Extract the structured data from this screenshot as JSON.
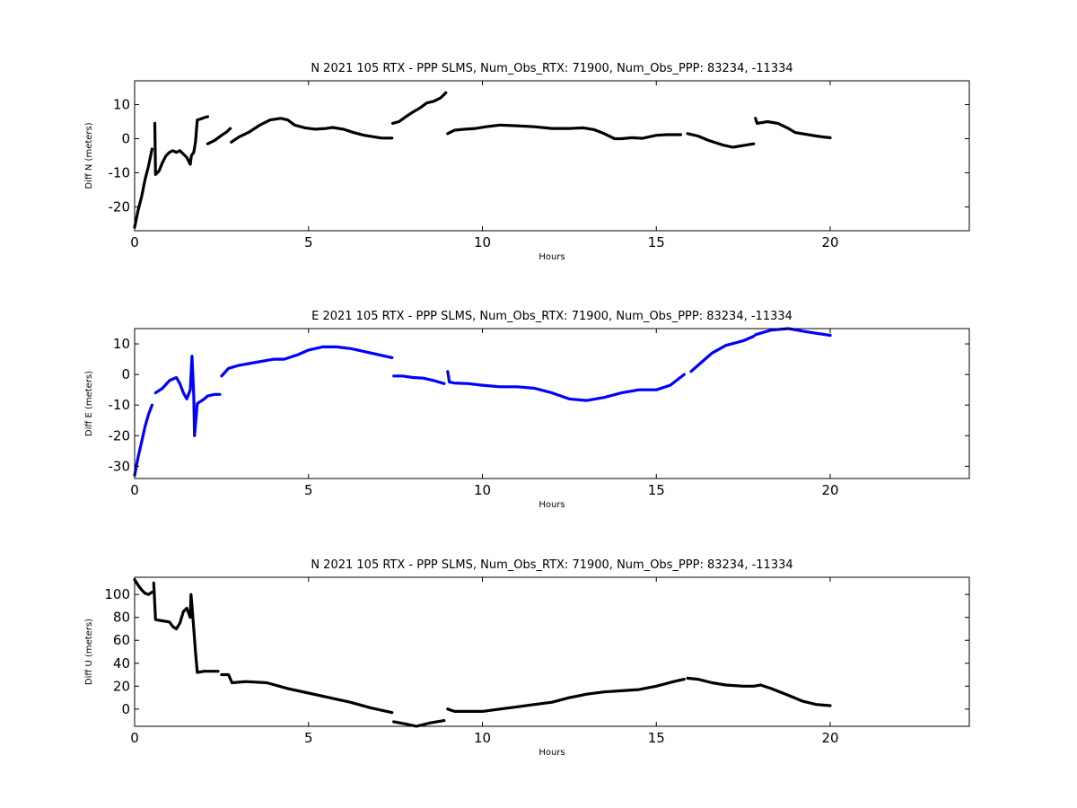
{
  "chart_data": [
    {
      "type": "scatter",
      "title": "N 2021 105 RTX - PPP  SLMS, Num_Obs_RTX: 71900, Num_Obs_PPP: 83234, -11334",
      "xlabel": "Hours",
      "ylabel": "Diff N (meters)",
      "xlim": [
        0,
        24
      ],
      "ylim": [
        -27,
        17
      ],
      "xticks": [
        0,
        5,
        10,
        15,
        20
      ],
      "yticks": [
        -20,
        -10,
        0,
        10
      ],
      "grid": false,
      "color": "#000000",
      "segments": [
        [
          [
            0.0,
            -26
          ],
          [
            0.1,
            -21
          ],
          [
            0.2,
            -17
          ],
          [
            0.3,
            -12
          ],
          [
            0.4,
            -8
          ],
          [
            0.5,
            -3
          ]
        ],
        [
          [
            0.58,
            4.5
          ],
          [
            0.6,
            -10.5
          ],
          [
            0.7,
            -9.5
          ],
          [
            0.8,
            -7
          ],
          [
            0.9,
            -5
          ],
          [
            1.0,
            -4
          ],
          [
            1.1,
            -3.5
          ],
          [
            1.2,
            -4
          ],
          [
            1.3,
            -3.5
          ],
          [
            1.4,
            -4.5
          ],
          [
            1.5,
            -5.5
          ],
          [
            1.6,
            -7.5
          ],
          [
            1.63,
            -5
          ],
          [
            1.7,
            -4
          ],
          [
            1.75,
            -1
          ],
          [
            1.8,
            5.5
          ],
          [
            1.9,
            5.8
          ],
          [
            2.0,
            6.2
          ],
          [
            2.1,
            6.5
          ]
        ],
        [
          [
            2.1,
            -1.5
          ],
          [
            2.3,
            -0.5
          ],
          [
            2.5,
            1
          ],
          [
            2.65,
            2
          ],
          [
            2.75,
            3
          ]
        ],
        [
          [
            2.78,
            -1
          ],
          [
            3.0,
            0.5
          ],
          [
            3.3,
            2
          ],
          [
            3.6,
            4
          ],
          [
            3.9,
            5.5
          ],
          [
            4.2,
            6
          ],
          [
            4.4,
            5.5
          ],
          [
            4.6,
            4
          ],
          [
            4.9,
            3.2
          ],
          [
            5.2,
            2.8
          ],
          [
            5.5,
            3
          ],
          [
            5.7,
            3.3
          ],
          [
            6.0,
            2.8
          ],
          [
            6.3,
            1.8
          ],
          [
            6.6,
            1
          ],
          [
            6.9,
            0.5
          ],
          [
            7.1,
            0.2
          ],
          [
            7.4,
            0.2
          ]
        ],
        [
          [
            7.42,
            4.5
          ],
          [
            7.6,
            5
          ],
          [
            7.8,
            6.5
          ],
          [
            8.0,
            7.8
          ],
          [
            8.2,
            9
          ],
          [
            8.4,
            10.5
          ],
          [
            8.6,
            11
          ],
          [
            8.8,
            12
          ],
          [
            8.95,
            13.5
          ]
        ],
        [
          [
            9.0,
            1.5
          ],
          [
            9.2,
            2.5
          ],
          [
            9.5,
            2.8
          ],
          [
            9.8,
            3
          ],
          [
            10.1,
            3.5
          ],
          [
            10.5,
            4
          ],
          [
            11.0,
            3.8
          ],
          [
            11.5,
            3.5
          ],
          [
            12.0,
            3
          ],
          [
            12.5,
            3
          ],
          [
            12.9,
            3.2
          ],
          [
            13.2,
            2.7
          ],
          [
            13.5,
            1.5
          ],
          [
            13.8,
            0
          ],
          [
            14.0,
            0
          ],
          [
            14.3,
            0.3
          ],
          [
            14.6,
            0.1
          ],
          [
            15.0,
            1
          ],
          [
            15.3,
            1.2
          ],
          [
            15.7,
            1.2
          ]
        ],
        [
          [
            15.9,
            1.5
          ],
          [
            16.2,
            0.8
          ],
          [
            16.5,
            -0.5
          ],
          [
            16.9,
            -1.8
          ],
          [
            17.2,
            -2.5
          ],
          [
            17.5,
            -2
          ],
          [
            17.8,
            -1.5
          ]
        ],
        [
          [
            17.85,
            6
          ],
          [
            17.9,
            4.5
          ],
          [
            18.2,
            5
          ],
          [
            18.5,
            4.5
          ],
          [
            18.8,
            3
          ],
          [
            19.0,
            1.8
          ],
          [
            19.3,
            1.3
          ],
          [
            19.6,
            0.8
          ],
          [
            19.8,
            0.5
          ],
          [
            20.0,
            0.3
          ]
        ]
      ]
    },
    {
      "type": "scatter",
      "title": "E 2021 105 RTX - PPP  SLMS, Num_Obs_RTX: 71900, Num_Obs_PPP: 83234, -11334",
      "xlabel": "Hours",
      "ylabel": "Diff E (meters)",
      "xlim": [
        0,
        24
      ],
      "ylim": [
        -34,
        15
      ],
      "xticks": [
        0,
        5,
        10,
        15,
        20
      ],
      "yticks": [
        -30,
        -20,
        -10,
        0,
        10
      ],
      "grid": false,
      "color": "#0000ff",
      "segments": [
        [
          [
            0.0,
            -33
          ],
          [
            0.1,
            -27
          ],
          [
            0.2,
            -22
          ],
          [
            0.3,
            -17
          ],
          [
            0.4,
            -13
          ],
          [
            0.5,
            -10
          ]
        ],
        [
          [
            0.6,
            -6
          ],
          [
            0.8,
            -4.5
          ],
          [
            1.0,
            -2
          ],
          [
            1.2,
            -1
          ],
          [
            1.3,
            -3
          ],
          [
            1.4,
            -6
          ],
          [
            1.5,
            -8
          ],
          [
            1.6,
            -5
          ],
          [
            1.65,
            6
          ],
          [
            1.7,
            -7
          ],
          [
            1.72,
            -20
          ],
          [
            1.8,
            -9.5
          ],
          [
            2.0,
            -8
          ],
          [
            2.1,
            -7
          ],
          [
            2.3,
            -6.5
          ],
          [
            2.45,
            -6.5
          ]
        ],
        [
          [
            2.5,
            -0.5
          ],
          [
            2.7,
            2
          ],
          [
            3.0,
            3
          ],
          [
            3.5,
            4
          ],
          [
            4.0,
            5
          ],
          [
            4.3,
            5
          ],
          [
            4.7,
            6.5
          ],
          [
            5.0,
            8
          ],
          [
            5.4,
            9
          ],
          [
            5.8,
            9
          ],
          [
            6.2,
            8.5
          ],
          [
            6.6,
            7.5
          ],
          [
            7.0,
            6.5
          ],
          [
            7.4,
            5.5
          ]
        ],
        [
          [
            7.45,
            -0.5
          ],
          [
            7.7,
            -0.5
          ],
          [
            8.0,
            -1
          ],
          [
            8.3,
            -1.2
          ],
          [
            8.6,
            -2
          ],
          [
            8.9,
            -3
          ]
        ],
        [
          [
            9.0,
            1
          ],
          [
            9.05,
            -2.5
          ],
          [
            9.2,
            -2.8
          ],
          [
            9.6,
            -3
          ],
          [
            10.0,
            -3.5
          ],
          [
            10.5,
            -4
          ],
          [
            11.0,
            -4
          ],
          [
            11.5,
            -4.5
          ],
          [
            12.0,
            -6
          ],
          [
            12.5,
            -8
          ],
          [
            13.0,
            -8.5
          ],
          [
            13.5,
            -7.5
          ],
          [
            14.0,
            -6
          ],
          [
            14.5,
            -5
          ],
          [
            15.0,
            -5
          ],
          [
            15.4,
            -3.5
          ],
          [
            15.8,
            0
          ]
        ],
        [
          [
            16.0,
            1
          ],
          [
            16.3,
            4
          ],
          [
            16.6,
            7
          ],
          [
            17.0,
            9.5
          ],
          [
            17.5,
            11
          ],
          [
            17.8,
            12.5
          ]
        ],
        [
          [
            17.85,
            13
          ],
          [
            18.3,
            14.5
          ],
          [
            18.8,
            15
          ],
          [
            19.3,
            14
          ],
          [
            19.7,
            13.3
          ],
          [
            20.0,
            12.8
          ]
        ]
      ]
    },
    {
      "type": "scatter",
      "title": "N 2021 105 RTX - PPP  SLMS, Num_Obs_RTX: 71900, Num_Obs_PPP: 83234, -11334",
      "xlabel": "Hours",
      "ylabel": "Diff U (meters)",
      "xlim": [
        0,
        24
      ],
      "ylim": [
        -15,
        115
      ],
      "xticks": [
        0,
        5,
        10,
        15,
        20
      ],
      "yticks": [
        0,
        20,
        40,
        60,
        80,
        100
      ],
      "grid": false,
      "color": "#000000",
      "segments": [
        [
          [
            0.0,
            113
          ],
          [
            0.1,
            108
          ],
          [
            0.2,
            104
          ],
          [
            0.3,
            101
          ],
          [
            0.4,
            100
          ],
          [
            0.5,
            102
          ]
        ],
        [
          [
            0.55,
            110
          ],
          [
            0.6,
            78
          ],
          [
            0.8,
            77
          ],
          [
            1.0,
            76
          ],
          [
            1.1,
            72
          ],
          [
            1.2,
            70
          ],
          [
            1.3,
            75
          ],
          [
            1.4,
            85
          ],
          [
            1.5,
            88
          ],
          [
            1.6,
            80
          ],
          [
            1.62,
            100
          ],
          [
            1.65,
            90
          ],
          [
            1.7,
            70
          ],
          [
            1.75,
            50
          ],
          [
            1.8,
            32
          ],
          [
            2.0,
            33
          ],
          [
            2.2,
            33
          ],
          [
            2.4,
            33
          ]
        ],
        [
          [
            2.5,
            30
          ],
          [
            2.7,
            30
          ],
          [
            2.8,
            23
          ],
          [
            3.2,
            24
          ],
          [
            3.8,
            23
          ],
          [
            4.4,
            18
          ],
          [
            5.0,
            14
          ],
          [
            5.6,
            10
          ],
          [
            6.2,
            6
          ],
          [
            6.8,
            1
          ],
          [
            7.4,
            -3
          ]
        ],
        [
          [
            7.45,
            -11
          ],
          [
            7.8,
            -13
          ],
          [
            8.1,
            -15
          ],
          [
            8.5,
            -12
          ],
          [
            8.9,
            -10
          ]
        ],
        [
          [
            9.0,
            0
          ],
          [
            9.2,
            -2
          ],
          [
            9.6,
            -2
          ],
          [
            10.0,
            -2
          ],
          [
            10.5,
            0
          ],
          [
            11.0,
            2
          ],
          [
            11.5,
            4
          ],
          [
            12.0,
            6
          ],
          [
            12.5,
            10
          ],
          [
            13.0,
            13
          ],
          [
            13.5,
            15
          ],
          [
            14.0,
            16
          ],
          [
            14.5,
            17
          ],
          [
            15.0,
            20
          ],
          [
            15.5,
            24
          ],
          [
            15.8,
            26
          ]
        ],
        [
          [
            15.9,
            27
          ],
          [
            16.2,
            26
          ],
          [
            16.6,
            23
          ],
          [
            17.0,
            21
          ],
          [
            17.5,
            20
          ],
          [
            17.8,
            20
          ],
          [
            18.0,
            21
          ],
          [
            18.3,
            18
          ],
          [
            18.8,
            12
          ],
          [
            19.2,
            7
          ],
          [
            19.6,
            4
          ],
          [
            20.0,
            3
          ]
        ]
      ]
    }
  ]
}
